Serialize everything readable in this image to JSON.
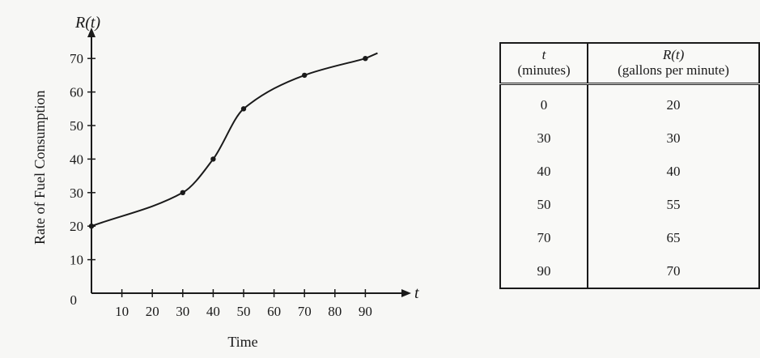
{
  "chart_data": {
    "type": "line",
    "xlabel": "Time",
    "ylabel": "Rate of Fuel Consumption",
    "x_axis_var": "t",
    "y_axis_var": "R(t)",
    "xlim": [
      0,
      100
    ],
    "ylim": [
      0,
      75
    ],
    "x_ticks": [
      10,
      20,
      30,
      40,
      50,
      60,
      70,
      80,
      90
    ],
    "y_ticks": [
      10,
      20,
      30,
      40,
      50,
      60,
      70
    ],
    "origin_label": "0",
    "grid": false,
    "legend": "none",
    "series": [
      {
        "x": [
          0,
          30,
          40,
          50,
          70,
          90
        ],
        "y": [
          20,
          30,
          40,
          55,
          65,
          70
        ]
      }
    ]
  },
  "table": {
    "headers": [
      {
        "var": "t",
        "unit": "(minutes)"
      },
      {
        "var": "R(t)",
        "unit": "(gallons per minute)"
      }
    ],
    "rows": [
      [
        "0",
        "20"
      ],
      [
        "30",
        "30"
      ],
      [
        "40",
        "40"
      ],
      [
        "50",
        "55"
      ],
      [
        "70",
        "65"
      ],
      [
        "90",
        "70"
      ]
    ]
  }
}
